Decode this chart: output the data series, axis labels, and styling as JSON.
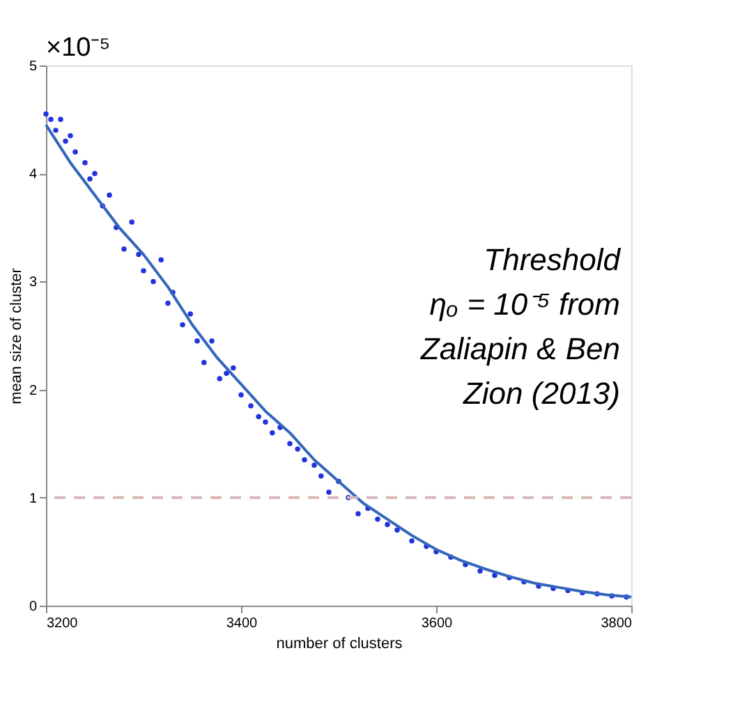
{
  "chart_data": {
    "type": "scatter",
    "xlabel": "number of clusters",
    "ylabel": "mean size of cluster",
    "xlim": [
      3200,
      3800
    ],
    "ylim": [
      0,
      5
    ],
    "xticks": [
      3200,
      3400,
      3600,
      3800
    ],
    "yticks": [
      0,
      1,
      2,
      3,
      4,
      5
    ],
    "grid": false,
    "series": [
      {
        "marker": "circle",
        "color": "#2233dd",
        "x": [
          3200,
          3205,
          3210,
          3215,
          3220,
          3225,
          3230,
          3240,
          3245,
          3250,
          3258,
          3265,
          3272,
          3280,
          3288,
          3295,
          3300,
          3310,
          3318,
          3325,
          3330,
          3340,
          3348,
          3355,
          3362,
          3370,
          3378,
          3385,
          3392,
          3400,
          3410,
          3418,
          3425,
          3432,
          3440,
          3450,
          3458,
          3465,
          3475,
          3482,
          3490,
          3500,
          3510,
          3520,
          3530,
          3540,
          3550,
          3560,
          3575,
          3590,
          3600,
          3615,
          3630,
          3645,
          3660,
          3675,
          3690,
          3705,
          3720,
          3735,
          3750,
          3765,
          3780,
          3795
        ],
        "values": [
          4.55,
          4.5,
          4.4,
          4.5,
          4.3,
          4.35,
          4.2,
          4.1,
          3.95,
          4.0,
          3.7,
          3.8,
          3.5,
          3.3,
          3.55,
          3.25,
          3.1,
          3.0,
          3.2,
          2.8,
          2.9,
          2.6,
          2.7,
          2.45,
          2.25,
          2.45,
          2.1,
          2.15,
          2.2,
          1.95,
          1.85,
          1.75,
          1.7,
          1.6,
          1.65,
          1.5,
          1.45,
          1.35,
          1.3,
          1.2,
          1.05,
          1.15,
          1.0,
          0.85,
          0.9,
          0.8,
          0.75,
          0.7,
          0.6,
          0.55,
          0.5,
          0.45,
          0.38,
          0.32,
          0.28,
          0.26,
          0.22,
          0.18,
          0.16,
          0.14,
          0.12,
          0.11,
          0.09,
          0.08
        ]
      },
      {
        "type": "line",
        "marker": "none",
        "color": "#3366bb",
        "line_style": "solid",
        "x": [
          3200,
          3225,
          3250,
          3275,
          3300,
          3325,
          3350,
          3375,
          3400,
          3425,
          3450,
          3475,
          3500,
          3525,
          3550,
          3575,
          3600,
          3625,
          3650,
          3675,
          3700,
          3725,
          3750,
          3775,
          3800
        ],
        "values": [
          4.45,
          4.1,
          3.8,
          3.5,
          3.25,
          2.95,
          2.6,
          2.3,
          2.05,
          1.8,
          1.6,
          1.35,
          1.15,
          0.95,
          0.8,
          0.65,
          0.52,
          0.42,
          0.34,
          0.27,
          0.21,
          0.17,
          0.13,
          0.1,
          0.08
        ]
      }
    ],
    "ref_lines": [
      {
        "axis": "y",
        "value": 1,
        "color": "#d8b8b8",
        "line_style": "dashed"
      }
    ],
    "annotations": [
      "×10⁻⁵",
      "Threshold",
      "ηₒ = 10⁻⁵ from",
      "Zaliapin & Ben",
      "Zion (2013)"
    ]
  }
}
